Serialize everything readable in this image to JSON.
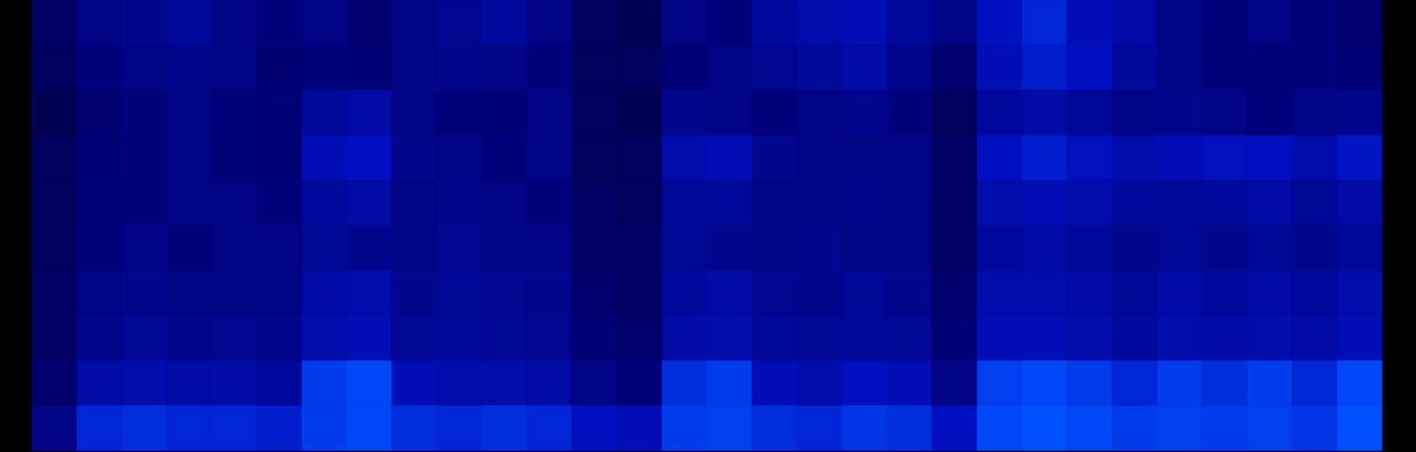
{
  "chart_data": {
    "type": "heatmap",
    "tick_labels": false,
    "zlim": [
      0,
      1
    ],
    "cells": [
      [
        0.22,
        0.3,
        0.32,
        0.35,
        0.3,
        0.28,
        0.3,
        0.25,
        0.3,
        0.33,
        0.36,
        0.3,
        0.2,
        0.18,
        0.3,
        0.28,
        0.36,
        0.4,
        0.42,
        0.35,
        0.3,
        0.45,
        0.5,
        0.42,
        0.38,
        0.3,
        0.28,
        0.3,
        0.27,
        0.25
      ],
      [
        0.2,
        0.28,
        0.3,
        0.32,
        0.3,
        0.25,
        0.28,
        0.26,
        0.3,
        0.32,
        0.3,
        0.28,
        0.2,
        0.2,
        0.26,
        0.3,
        0.33,
        0.35,
        0.38,
        0.32,
        0.25,
        0.42,
        0.48,
        0.45,
        0.35,
        0.3,
        0.28,
        0.27,
        0.28,
        0.26
      ],
      [
        0.18,
        0.25,
        0.28,
        0.3,
        0.28,
        0.26,
        0.35,
        0.38,
        0.3,
        0.28,
        0.26,
        0.3,
        0.2,
        0.18,
        0.32,
        0.3,
        0.28,
        0.3,
        0.32,
        0.28,
        0.2,
        0.36,
        0.38,
        0.35,
        0.3,
        0.32,
        0.3,
        0.28,
        0.3,
        0.32
      ],
      [
        0.2,
        0.26,
        0.28,
        0.3,
        0.27,
        0.26,
        0.42,
        0.45,
        0.32,
        0.3,
        0.28,
        0.3,
        0.2,
        0.2,
        0.4,
        0.42,
        0.32,
        0.3,
        0.3,
        0.3,
        0.22,
        0.45,
        0.48,
        0.44,
        0.4,
        0.42,
        0.44,
        0.45,
        0.4,
        0.46
      ],
      [
        0.2,
        0.27,
        0.28,
        0.3,
        0.3,
        0.28,
        0.36,
        0.38,
        0.3,
        0.32,
        0.3,
        0.28,
        0.22,
        0.2,
        0.35,
        0.36,
        0.3,
        0.3,
        0.32,
        0.3,
        0.22,
        0.4,
        0.42,
        0.4,
        0.36,
        0.35,
        0.36,
        0.38,
        0.34,
        0.38
      ],
      [
        0.2,
        0.28,
        0.3,
        0.28,
        0.3,
        0.3,
        0.34,
        0.32,
        0.3,
        0.33,
        0.3,
        0.3,
        0.22,
        0.22,
        0.34,
        0.32,
        0.3,
        0.32,
        0.3,
        0.3,
        0.22,
        0.36,
        0.38,
        0.35,
        0.32,
        0.34,
        0.32,
        0.34,
        0.32,
        0.35
      ],
      [
        0.22,
        0.3,
        0.32,
        0.3,
        0.3,
        0.3,
        0.38,
        0.4,
        0.32,
        0.34,
        0.33,
        0.32,
        0.24,
        0.22,
        0.36,
        0.38,
        0.33,
        0.32,
        0.34,
        0.32,
        0.24,
        0.4,
        0.4,
        0.38,
        0.34,
        0.38,
        0.36,
        0.38,
        0.36,
        0.4
      ],
      [
        0.22,
        0.32,
        0.34,
        0.32,
        0.33,
        0.32,
        0.4,
        0.42,
        0.34,
        0.35,
        0.34,
        0.33,
        0.26,
        0.24,
        0.38,
        0.4,
        0.35,
        0.34,
        0.35,
        0.34,
        0.26,
        0.42,
        0.42,
        0.4,
        0.36,
        0.4,
        0.38,
        0.4,
        0.38,
        0.42
      ],
      [
        0.24,
        0.38,
        0.4,
        0.38,
        0.38,
        0.36,
        0.55,
        0.58,
        0.42,
        0.4,
        0.4,
        0.38,
        0.3,
        0.28,
        0.52,
        0.55,
        0.42,
        0.4,
        0.45,
        0.42,
        0.3,
        0.56,
        0.58,
        0.55,
        0.5,
        0.55,
        0.52,
        0.55,
        0.5,
        0.58
      ],
      [
        0.3,
        0.5,
        0.52,
        0.5,
        0.5,
        0.48,
        0.55,
        0.58,
        0.52,
        0.5,
        0.52,
        0.5,
        0.45,
        0.42,
        0.55,
        0.56,
        0.52,
        0.5,
        0.54,
        0.52,
        0.45,
        0.58,
        0.6,
        0.58,
        0.55,
        0.56,
        0.55,
        0.56,
        0.54,
        0.6
      ]
    ]
  }
}
